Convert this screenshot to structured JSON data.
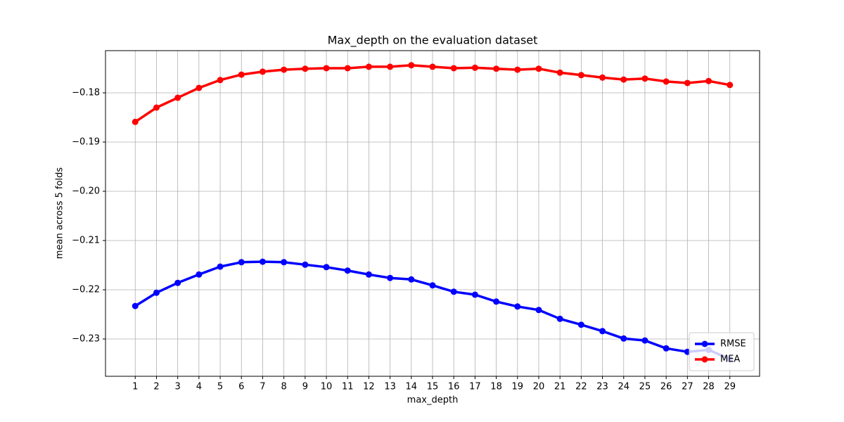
{
  "chart_data": {
    "type": "line",
    "title": "Max_depth on the evaluation dataset",
    "x_label": "max_depth",
    "y_label": "mean across 5 folds",
    "x": [
      1,
      2,
      3,
      4,
      5,
      6,
      7,
      8,
      9,
      10,
      11,
      12,
      13,
      14,
      15,
      16,
      17,
      18,
      19,
      20,
      21,
      22,
      23,
      24,
      25,
      26,
      27,
      28,
      29
    ],
    "series": [
      {
        "name": "RMSE",
        "color": "#0000ff",
        "values": [
          -0.2233,
          -0.2206,
          -0.2186,
          -0.2169,
          -0.2153,
          -0.2144,
          -0.2143,
          -0.2144,
          -0.2149,
          -0.2154,
          -0.2161,
          -0.2169,
          -0.2176,
          -0.2179,
          -0.2191,
          -0.2204,
          -0.221,
          -0.2224,
          -0.2234,
          -0.2241,
          -0.2259,
          -0.2271,
          -0.2284,
          -0.2299,
          -0.2303,
          -0.2319,
          -0.2326,
          -0.2322,
          -0.2341
        ]
      },
      {
        "name": "MEA",
        "color": "#ff0000",
        "values": [
          -0.1859,
          -0.183,
          -0.181,
          -0.179,
          -0.1774,
          -0.1763,
          -0.1757,
          -0.1753,
          -0.1751,
          -0.175,
          -0.175,
          -0.1747,
          -0.1747,
          -0.1744,
          -0.1747,
          -0.175,
          -0.1749,
          -0.1751,
          -0.1753,
          -0.1751,
          -0.1759,
          -0.1764,
          -0.1769,
          -0.1773,
          -0.1771,
          -0.1777,
          -0.178,
          -0.1776,
          -0.1784
        ]
      }
    ],
    "xlim": [
      -0.4,
      30.4
    ],
    "ylim": [
      -0.23757,
      -0.17143
    ],
    "xticks": [
      1,
      2,
      3,
      4,
      5,
      6,
      7,
      8,
      9,
      10,
      11,
      12,
      13,
      14,
      15,
      16,
      17,
      18,
      19,
      20,
      21,
      22,
      23,
      24,
      25,
      26,
      27,
      28,
      29
    ],
    "yticks": [
      {
        "value": -0.23,
        "label": "−0.23"
      },
      {
        "value": -0.22,
        "label": "−0.22"
      },
      {
        "value": -0.21,
        "label": "−0.21"
      },
      {
        "value": -0.2,
        "label": "−0.20"
      },
      {
        "value": -0.19,
        "label": "−0.19"
      },
      {
        "value": -0.18,
        "label": "−0.18"
      }
    ],
    "grid": true,
    "legend_position": "lower right"
  }
}
